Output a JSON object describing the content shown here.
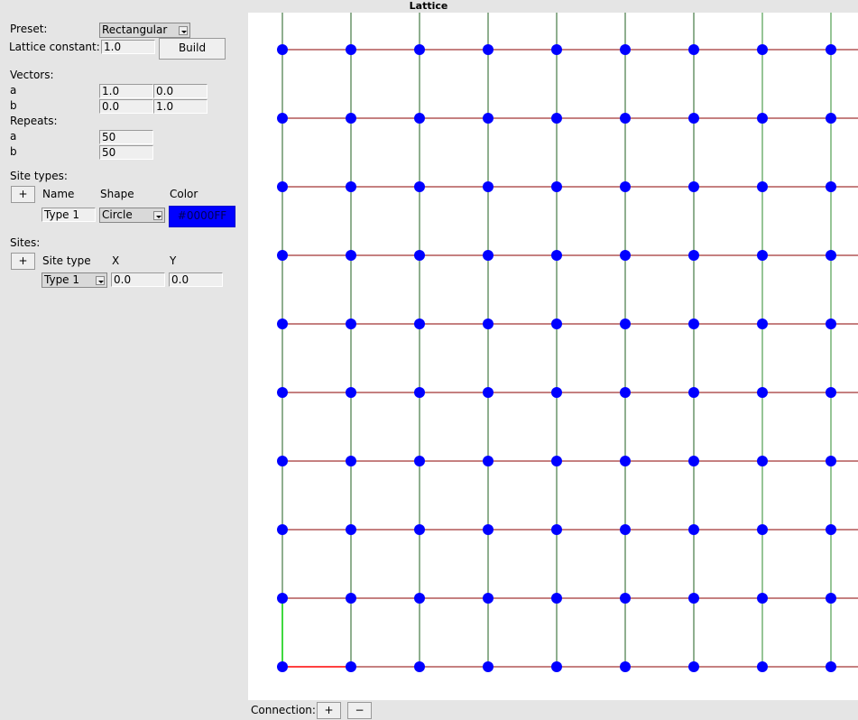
{
  "title": "Lattice",
  "preset": {
    "label": "Preset:",
    "value": "Rectangular"
  },
  "lattice_constant": {
    "label": "Lattice constant:",
    "value": "1.0",
    "build": "Build"
  },
  "vectors": {
    "label": "Vectors:",
    "a_label": "a",
    "b_label": "b",
    "a": [
      "1.0",
      "0.0"
    ],
    "b": [
      "0.0",
      "1.0"
    ]
  },
  "repeats": {
    "label": "Repeats:",
    "a_label": "a",
    "b_label": "b",
    "a": "50",
    "b": "50"
  },
  "site_types": {
    "label": "Site types:",
    "add": "+",
    "headers": {
      "name": "Name",
      "shape": "Shape",
      "color": "Color"
    },
    "rows": [
      {
        "name": "Type 1",
        "shape": "Circle",
        "color": "#0000FF"
      }
    ]
  },
  "sites": {
    "label": "Sites:",
    "add": "+",
    "headers": {
      "type": "Site type",
      "x": "X",
      "y": "Y"
    },
    "rows": [
      {
        "type": "Type 1",
        "x": "0.0",
        "y": "0.0"
      }
    ]
  },
  "connection": {
    "label": "Connection:",
    "add": "+",
    "remove": "−"
  },
  "colors": {
    "site": "#0000FF",
    "a_bond": "#8b0000",
    "b_bond": "#1f5f1f",
    "highlight_a": "#ff0000",
    "highlight_b": "#00cc00"
  }
}
